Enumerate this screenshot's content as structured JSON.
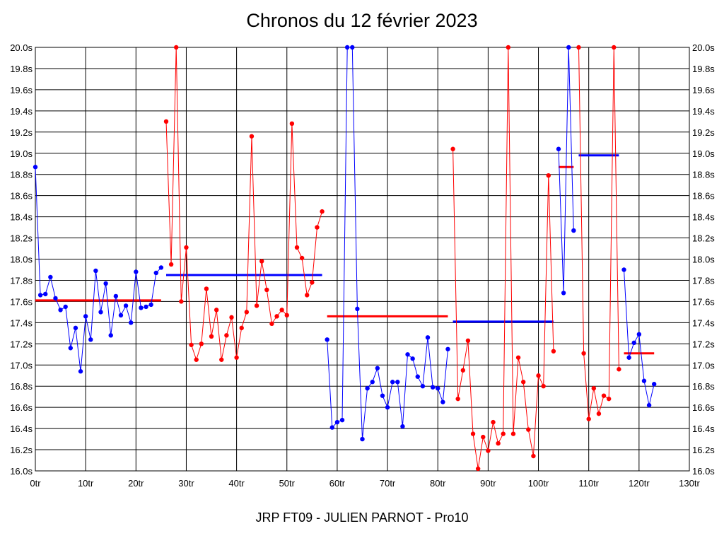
{
  "chart_data": {
    "type": "line",
    "title": "Chronos du 12 février 2023",
    "subtitle": "JRP FT09 - JULIEN PARNOT - Pro10",
    "xlim": [
      0,
      130
    ],
    "ylim": [
      16.0,
      20.0
    ],
    "x_ticks": [
      0,
      10,
      20,
      30,
      40,
      50,
      60,
      70,
      80,
      90,
      100,
      110,
      120,
      130
    ],
    "x_tick_labels": [
      "0tr",
      "10tr",
      "20tr",
      "30tr",
      "40tr",
      "50tr",
      "60tr",
      "70tr",
      "80tr",
      "90tr",
      "100tr",
      "110tr",
      "120tr",
      "130tr"
    ],
    "y_ticks": [
      16.0,
      16.2,
      16.4,
      16.6,
      16.8,
      17.0,
      17.2,
      17.4,
      17.6,
      17.8,
      18.0,
      18.2,
      18.4,
      18.6,
      18.8,
      19.0,
      19.2,
      19.4,
      19.6,
      19.8,
      20.0
    ],
    "y_tick_labels": [
      "16.0s",
      "16.2s",
      "16.4s",
      "16.6s",
      "16.8s",
      "17.0s",
      "17.2s",
      "17.4s",
      "17.6s",
      "17.8s",
      "18.0s",
      "18.2s",
      "18.4s",
      "18.6s",
      "18.8s",
      "19.0s",
      "19.2s",
      "19.4s",
      "19.6s",
      "19.8s",
      "20.0s"
    ],
    "grid": true,
    "colors": {
      "blue": "#0000ff",
      "red": "#ff0000"
    },
    "series": [
      {
        "color": "#0000ff",
        "x": [
          0,
          1,
          2,
          3,
          4,
          5,
          6,
          7,
          8,
          9,
          10,
          11,
          12,
          13,
          14,
          15,
          16,
          17,
          18,
          19,
          20,
          21,
          22,
          23,
          24,
          25
        ],
        "y": [
          18.87,
          17.66,
          17.67,
          17.83,
          17.63,
          17.52,
          17.55,
          17.16,
          17.35,
          16.94,
          17.46,
          17.24,
          17.89,
          17.5,
          17.77,
          17.28,
          17.65,
          17.47,
          17.56,
          17.4,
          17.88,
          17.54,
          17.55,
          17.57,
          17.87,
          17.92
        ]
      },
      {
        "color": "#ff0000",
        "x": [
          26,
          27,
          28,
          29,
          30,
          31,
          32,
          33,
          34,
          35,
          36,
          37,
          38,
          39,
          40,
          41,
          42,
          43,
          44,
          45,
          46,
          47,
          48,
          49,
          50,
          51,
          52,
          53,
          54,
          55,
          56,
          57
        ],
        "y": [
          19.3,
          17.95,
          20.0,
          17.6,
          18.11,
          17.19,
          17.05,
          17.2,
          17.72,
          17.27,
          17.52,
          17.05,
          17.28,
          17.45,
          17.07,
          17.35,
          17.5,
          19.16,
          17.56,
          17.98,
          17.71,
          17.39,
          17.46,
          17.52,
          17.47,
          19.28,
          18.11,
          18.01,
          17.66,
          17.78,
          18.3,
          18.45
        ]
      },
      {
        "color": "#0000ff",
        "x": [
          58,
          59,
          60,
          61,
          62,
          63,
          64,
          65,
          66,
          67,
          68,
          69,
          70,
          71,
          72,
          73,
          74,
          75,
          76,
          77,
          78,
          79,
          80,
          81,
          82
        ],
        "y": [
          17.24,
          16.41,
          16.46,
          16.48,
          20.0,
          20.0,
          17.53,
          16.3,
          16.78,
          16.84,
          16.97,
          16.71,
          16.6,
          16.84,
          16.84,
          16.42,
          17.1,
          17.06,
          16.89,
          16.8,
          17.26,
          16.79,
          16.78,
          16.65,
          17.15
        ]
      },
      {
        "color": "#ff0000",
        "x": [
          83,
          84,
          85,
          86,
          87,
          88,
          89,
          90,
          91,
          92,
          93,
          94,
          95,
          96,
          97,
          98,
          99,
          100,
          101,
          102,
          103
        ],
        "y": [
          19.04,
          16.68,
          16.95,
          17.23,
          16.35,
          16.02,
          16.32,
          16.19,
          16.46,
          16.26,
          16.35,
          20.0,
          16.35,
          17.07,
          16.84,
          16.39,
          16.14,
          16.9,
          16.8,
          18.79,
          17.13
        ]
      },
      {
        "color": "#0000ff",
        "x": [
          104,
          105,
          106,
          107
        ],
        "y": [
          19.04,
          17.68,
          20.0,
          18.27
        ]
      },
      {
        "color": "#ff0000",
        "x": [
          108,
          109,
          110,
          111,
          112,
          113,
          114,
          115,
          116
        ],
        "y": [
          20.0,
          17.11,
          16.49,
          16.78,
          16.54,
          16.71,
          16.68,
          20.0,
          16.96
        ]
      },
      {
        "color": "#0000ff",
        "x": [
          117,
          118,
          119,
          120,
          121,
          122,
          123
        ],
        "y": [
          17.9,
          17.07,
          17.21,
          17.29,
          16.85,
          16.62,
          16.82
        ]
      }
    ],
    "averages": [
      {
        "color": "#ff0000",
        "x": [
          0,
          25
        ],
        "y": 17.61
      },
      {
        "color": "#0000ff",
        "x": [
          26,
          57
        ],
        "y": 17.85
      },
      {
        "color": "#ff0000",
        "x": [
          58,
          82
        ],
        "y": 17.46
      },
      {
        "color": "#0000ff",
        "x": [
          83,
          103
        ],
        "y": 17.41
      },
      {
        "color": "#ff0000",
        "x": [
          104,
          107
        ],
        "y": 18.87
      },
      {
        "color": "#0000ff",
        "x": [
          108,
          116
        ],
        "y": 18.98
      },
      {
        "color": "#ff0000",
        "x": [
          117,
          123
        ],
        "y": 17.11
      }
    ]
  }
}
